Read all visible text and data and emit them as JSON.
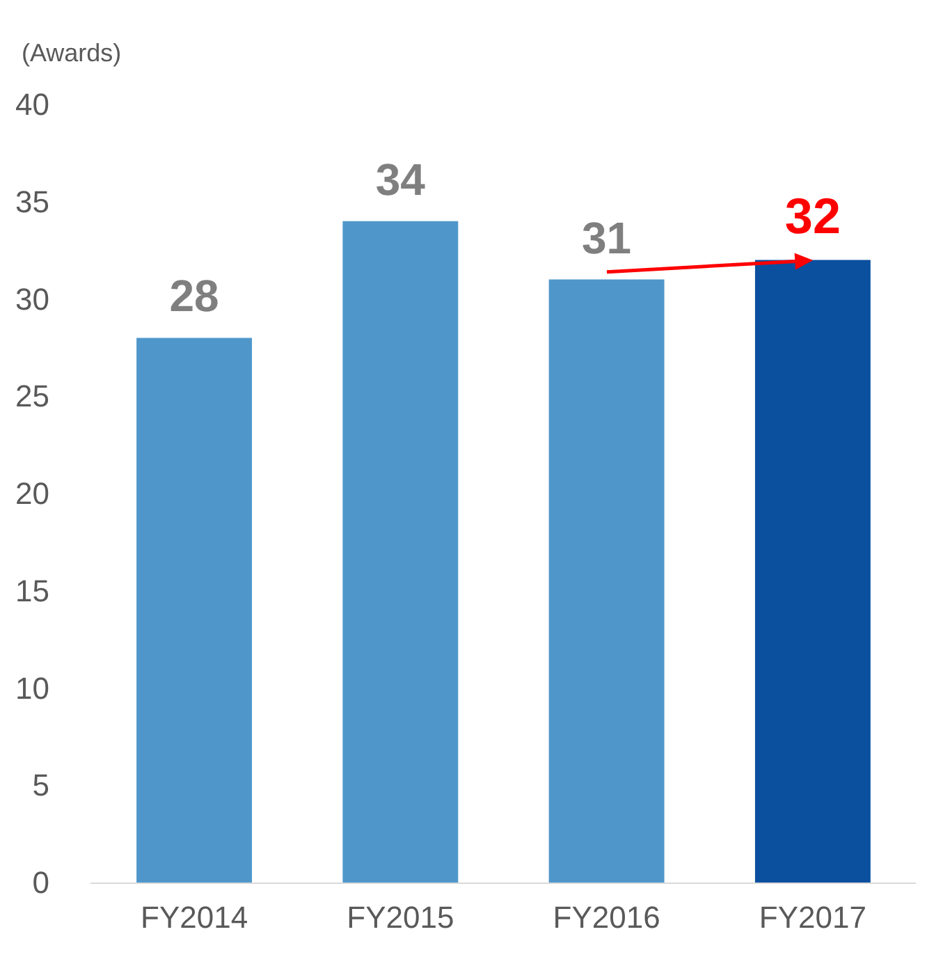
{
  "chart_data": {
    "type": "bar",
    "ylabel": "(Awards)",
    "categories": [
      "FY2014",
      "FY2015",
      "FY2016",
      "FY2017"
    ],
    "values": [
      28,
      34,
      31,
      32
    ],
    "colors": [
      "#4f97cb",
      "#4f97cb",
      "#4f97cb",
      "#0b4f9f"
    ],
    "ylim": [
      0,
      40
    ],
    "yticks": [
      0,
      5,
      10,
      15,
      20,
      25,
      30,
      35,
      40
    ],
    "grid": false,
    "data_labels": true
  }
}
